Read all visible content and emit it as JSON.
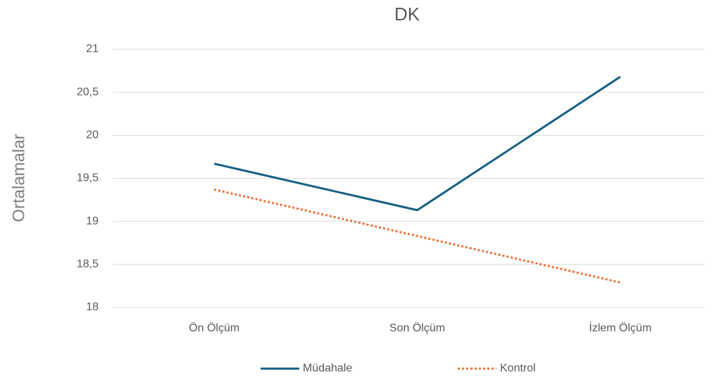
{
  "chart_data": {
    "type": "line",
    "title": "DK",
    "y_label": "Ortalamalar",
    "categories": [
      "Ön Ölçüm",
      "Son Ölçüm",
      "İzlem Ölçüm"
    ],
    "series": [
      {
        "name": "Müdahale",
        "color": "#156082",
        "dash": "solid",
        "values": [
          19.67,
          19.13,
          20.68
        ]
      },
      {
        "name": "Kontrol",
        "color": "#e97132",
        "dash": "dotted",
        "values": [
          19.37,
          18.83,
          18.29
        ]
      }
    ],
    "ylim": [
      18,
      21
    ],
    "yticks": [
      18,
      {
        "value": 18.5,
        "label": "18,5"
      },
      19,
      {
        "value": 19.5,
        "label": "19,5"
      },
      20,
      {
        "value": 20.5,
        "label": "20,5"
      },
      21
    ],
    "grid": true,
    "legend": "bottom"
  }
}
